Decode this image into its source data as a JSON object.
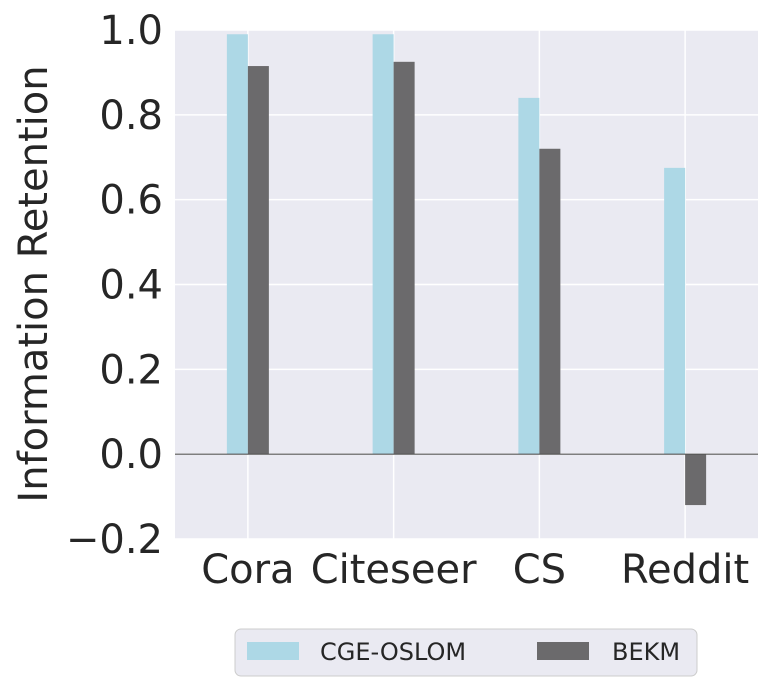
{
  "chart_data": {
    "type": "bar",
    "categories": [
      "Cora",
      "Citeseer",
      "CS",
      "Reddit"
    ],
    "series": [
      {
        "name": "CGE-OSLOM",
        "values": [
          0.99,
          0.99,
          0.84,
          0.675
        ],
        "color": "#add8e6"
      },
      {
        "name": "BEKM",
        "values": [
          0.915,
          0.925,
          0.72,
          -0.12
        ],
        "color": "#6b6a6c"
      }
    ],
    "ylabel": "Information Retention",
    "xlabel": "",
    "ylim": [
      -0.2,
      1.0
    ],
    "yticks": [
      "−0.2",
      "0.0",
      "0.2",
      "0.4",
      "0.6",
      "0.8",
      "1.0"
    ],
    "ytick_values": [
      -0.2,
      0.0,
      0.2,
      0.4,
      0.6,
      0.8,
      1.0
    ],
    "grid": true,
    "zero_line": true,
    "legend": "bottom-center",
    "background": "#eaeaf2"
  }
}
